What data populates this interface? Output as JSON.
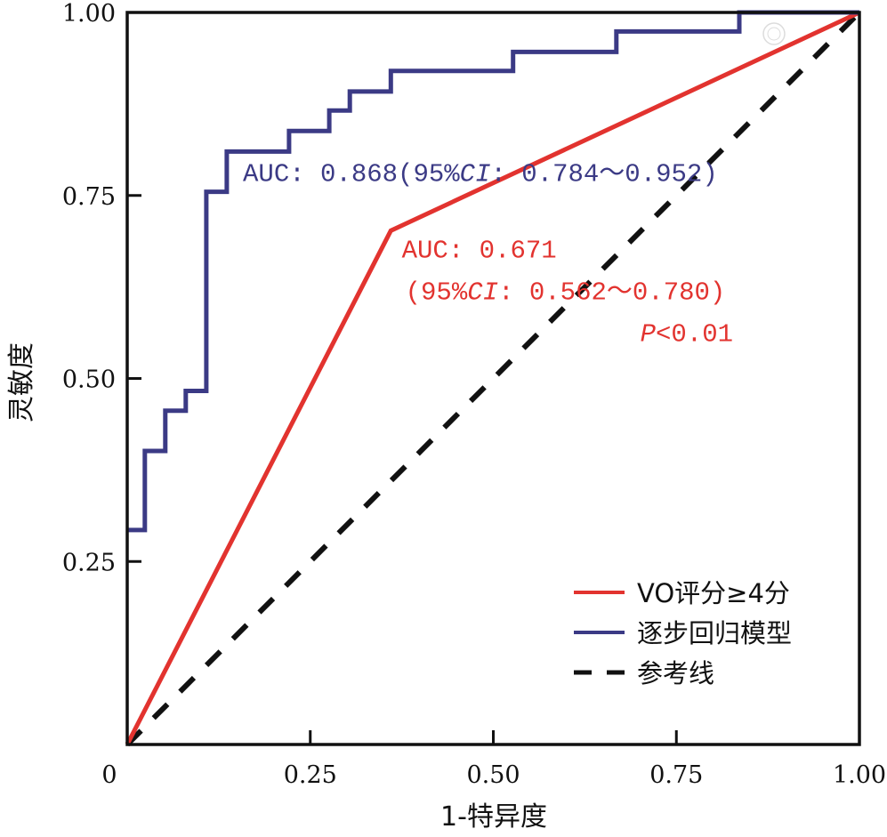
{
  "chart_data": {
    "type": "line",
    "title": "",
    "xlabel": "1-特异度",
    "ylabel": "灵敏度",
    "xlim": [
      0,
      1
    ],
    "ylim": [
      0,
      1
    ],
    "grid": false,
    "x_ticks": [
      {
        "value": 0,
        "label": "0"
      },
      {
        "value": 0.25,
        "label": "0.25"
      },
      {
        "value": 0.5,
        "label": "0.50"
      },
      {
        "value": 0.75,
        "label": "0.75"
      },
      {
        "value": 1.0,
        "label": "1.00"
      }
    ],
    "y_ticks": [
      {
        "value": 0.25,
        "label": "0.25"
      },
      {
        "value": 0.5,
        "label": "0.50"
      },
      {
        "value": 0.75,
        "label": "0.75"
      },
      {
        "value": 1.0,
        "label": "1.00"
      }
    ],
    "legend_position": "bottom-right",
    "series": [
      {
        "name": "VO评分≥4分",
        "color": "#e2332f",
        "style": "solid",
        "points": [
          [
            0,
            0
          ],
          [
            0.36,
            0.702
          ],
          [
            1.0,
            1.0
          ]
        ]
      },
      {
        "name": "逐步回归模型",
        "color": "#3b3a85",
        "style": "step",
        "points": [
          [
            0,
            0.293
          ],
          [
            0.024,
            0.293
          ],
          [
            0.024,
            0.401
          ],
          [
            0.052,
            0.401
          ],
          [
            0.052,
            0.456
          ],
          [
            0.08,
            0.456
          ],
          [
            0.08,
            0.483
          ],
          [
            0.108,
            0.483
          ],
          [
            0.108,
            0.755
          ],
          [
            0.136,
            0.755
          ],
          [
            0.136,
            0.81
          ],
          [
            0.221,
            0.81
          ],
          [
            0.221,
            0.838
          ],
          [
            0.276,
            0.838
          ],
          [
            0.276,
            0.866
          ],
          [
            0.304,
            0.866
          ],
          [
            0.304,
            0.892
          ],
          [
            0.36,
            0.892
          ],
          [
            0.36,
            0.92
          ],
          [
            0.527,
            0.92
          ],
          [
            0.527,
            0.946
          ],
          [
            0.668,
            0.946
          ],
          [
            0.668,
            0.974
          ],
          [
            0.836,
            0.974
          ],
          [
            0.836,
            1.0
          ],
          [
            1.0,
            1.0
          ]
        ]
      },
      {
        "name": "参考线",
        "color": "#111111",
        "style": "dashed",
        "points": [
          [
            0,
            0
          ],
          [
            1,
            1
          ]
        ]
      }
    ],
    "annotations": [
      {
        "id": "blue-auc",
        "color": "#3b3a85",
        "lines": [
          [
            {
              "text": "AUC: 0.868(95%",
              "italic": false
            },
            {
              "text": "CI",
              "italic": true
            },
            {
              "text": ": 0.784～0.952)",
              "italic": false
            }
          ]
        ],
        "anchor": [
          0.158,
          0.77
        ]
      },
      {
        "id": "red-auc",
        "color": "#e2332f",
        "lines": [
          [
            {
              "text": "AUC: 0.671",
              "italic": false
            }
          ],
          [
            {
              "text": "(95%",
              "italic": false
            },
            {
              "text": "CI",
              "italic": true
            },
            {
              "text": ": 0.562～0.780)",
              "italic": false
            }
          ],
          [
            {
              "text": "P",
              "italic": true
            },
            {
              "text": "<0.01",
              "italic": false
            }
          ]
        ],
        "anchor": [
          0.375,
          0.665
        ]
      }
    ]
  }
}
